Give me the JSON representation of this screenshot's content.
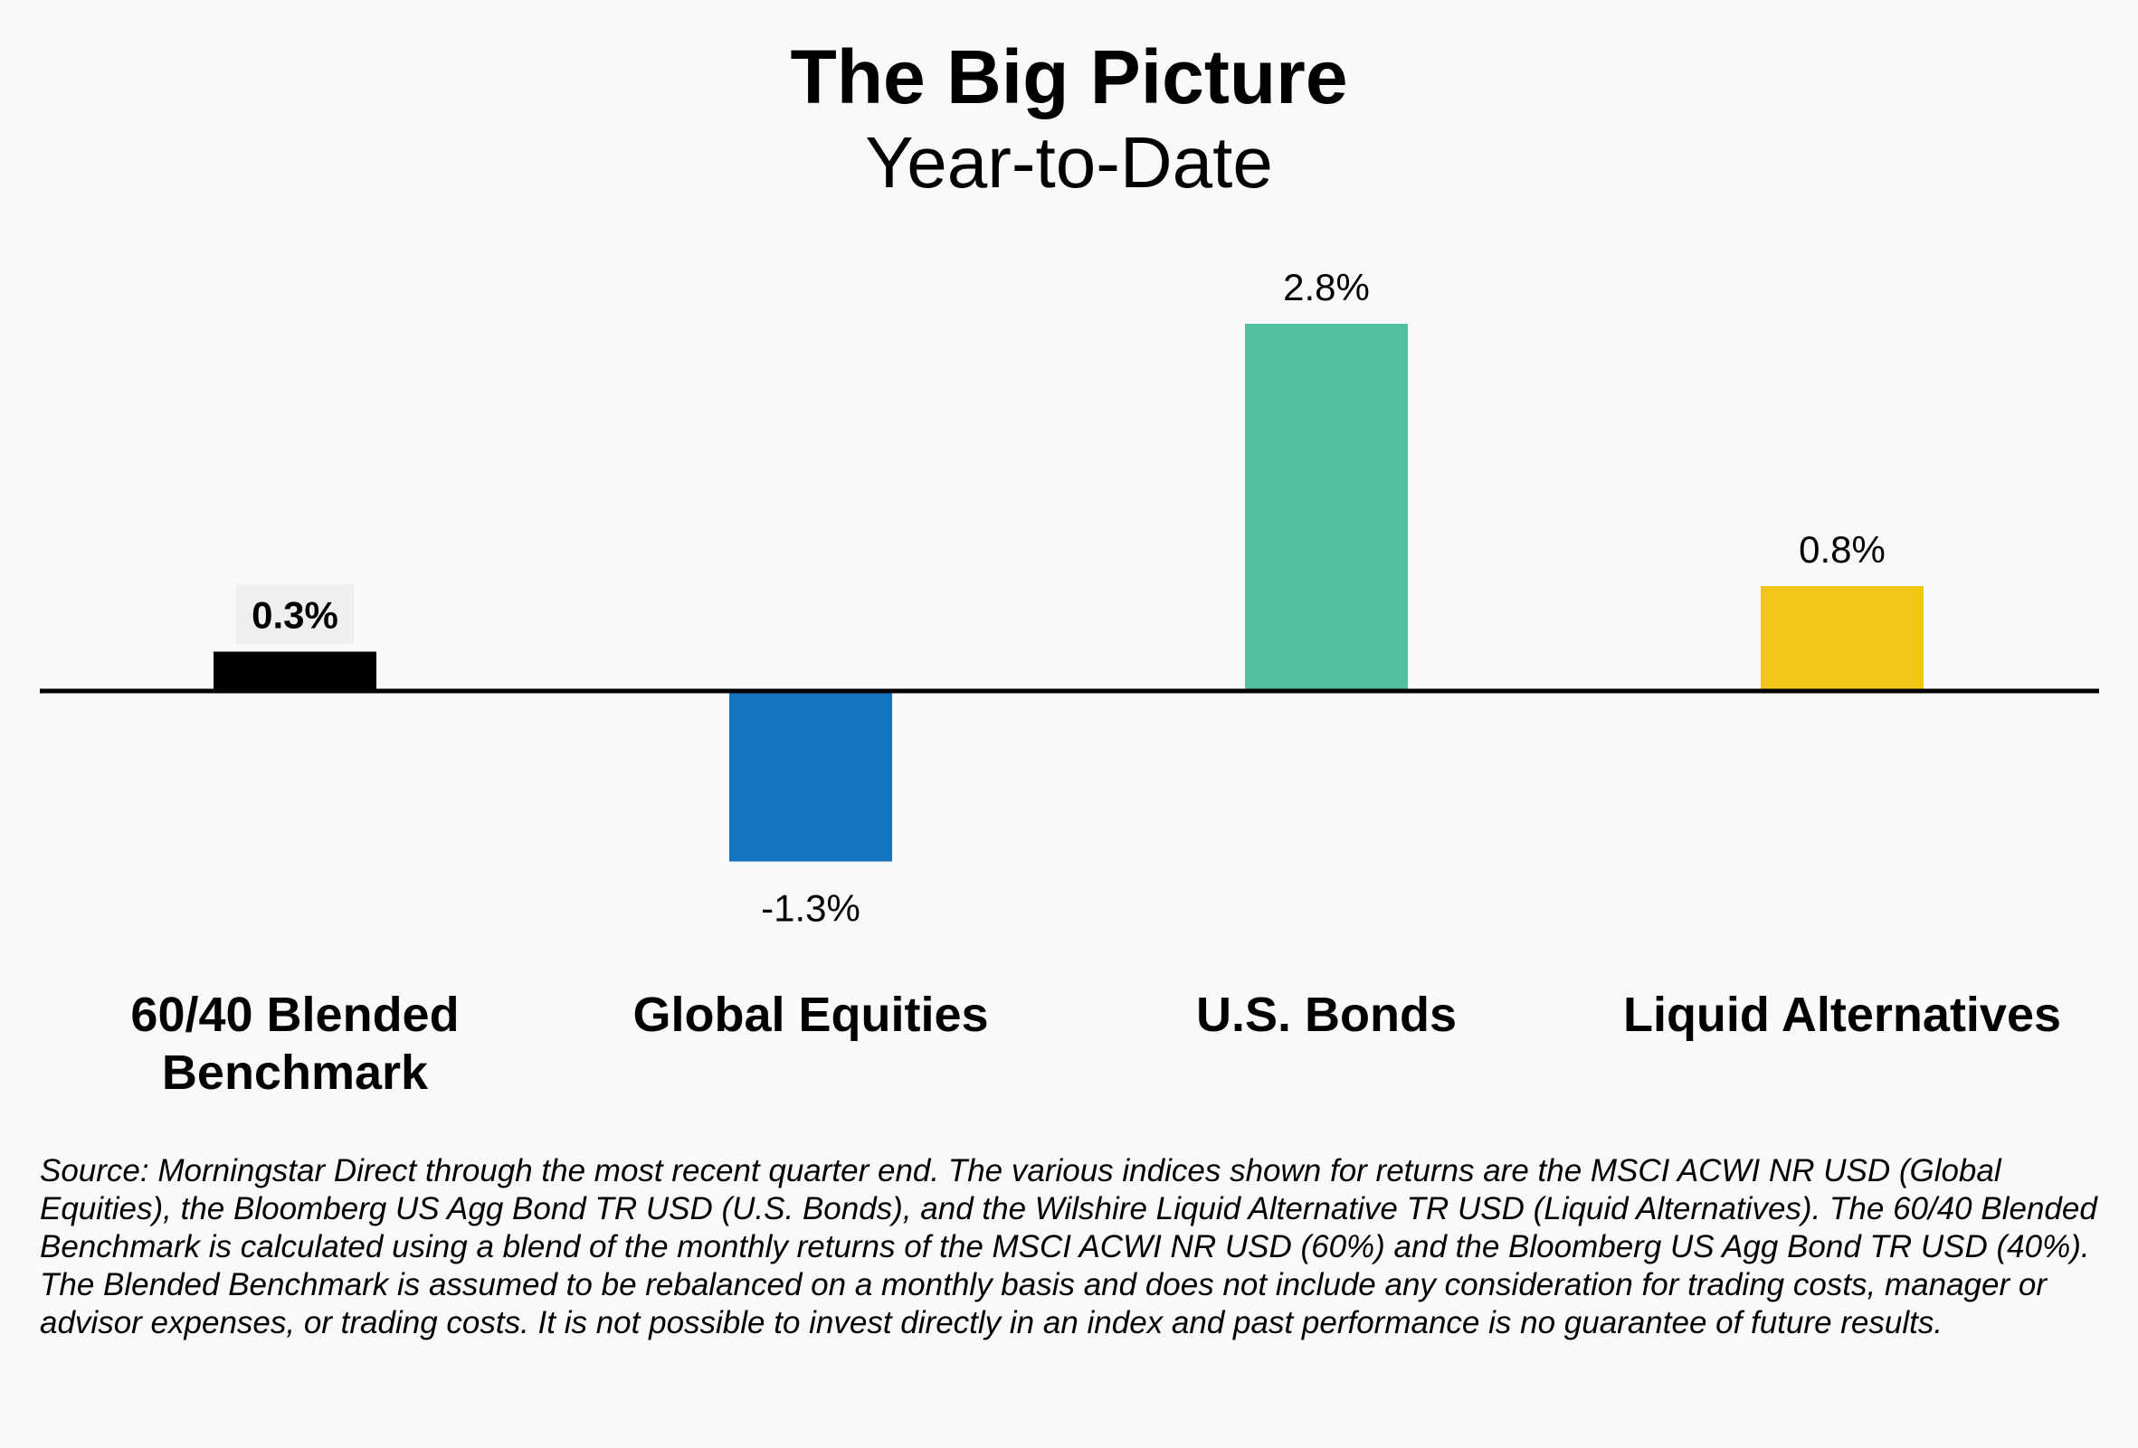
{
  "chart_data": {
    "type": "bar",
    "title": "The Big Picture",
    "subtitle": "Year-to-Date",
    "categories": [
      "60/40 Blended\nBenchmark",
      "Global Equities",
      "U.S. Bonds",
      "Liquid Alternatives"
    ],
    "values": [
      0.3,
      -1.3,
      2.8,
      0.8
    ],
    "value_labels": [
      "0.3%",
      "-1.3%",
      "2.8%",
      "0.8%"
    ],
    "colors": [
      "#000000",
      "#1574bd",
      "#52bf9f",
      "#f2c516"
    ],
    "unit": "%",
    "xlabel": "",
    "ylabel": "",
    "grid": false,
    "legend": "none"
  },
  "footnote": "Source: Morningstar Direct through the most recent quarter end.  The various indices shown for returns are the MSCI ACWI NR USD (Global Equities), the Bloomberg US Agg Bond TR USD (U.S. Bonds), and the Wilshire Liquid Alternative TR USD (Liquid Alternatives).  The 60/40 Blended Benchmark is calculated using a blend of the monthly returns of the MSCI ACWI NR USD (60%) and the Bloomberg US Agg Bond TR USD (40%).  The Blended Benchmark is assumed to be rebalanced on a monthly basis and does not include any consideration for trading costs, manager or advisor expenses, or trading costs.  It is not possible to invest directly in an index and past performance is no guarantee of future results."
}
